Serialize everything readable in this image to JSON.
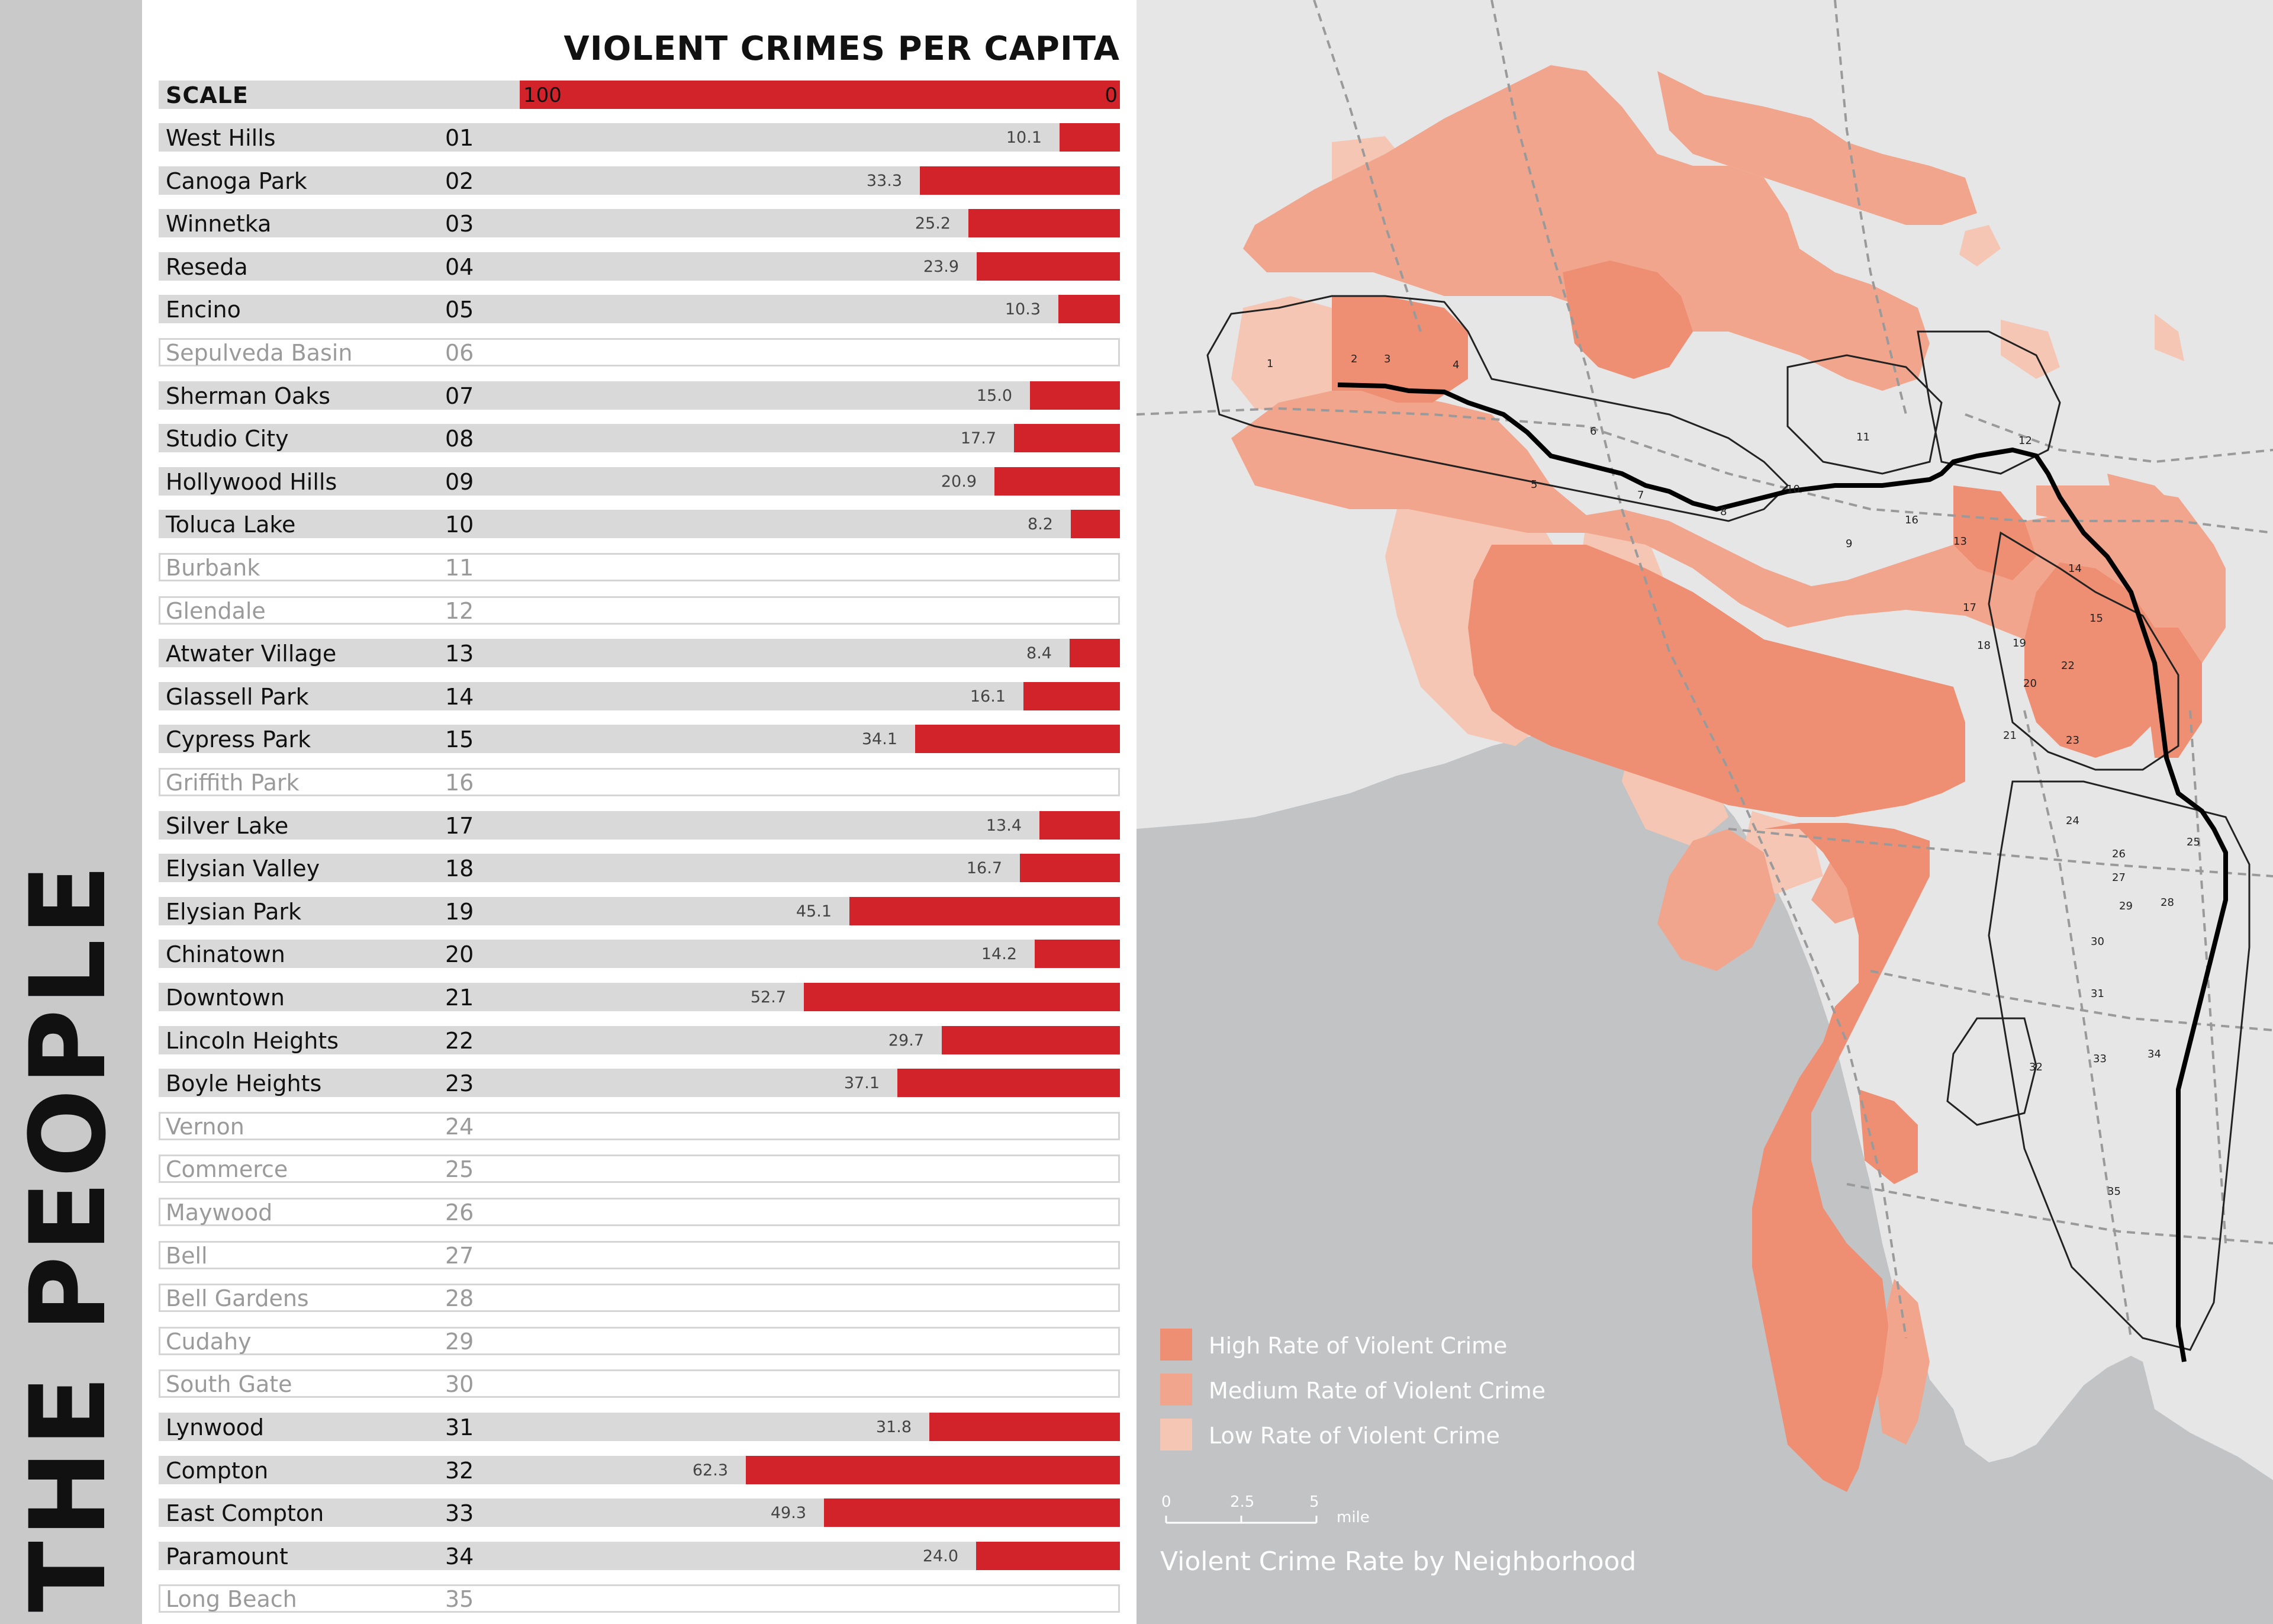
{
  "side_title": "THE PEOPLE",
  "chart_data": {
    "type": "bar",
    "title": "VIOLENT CRIMES PER CAPITA",
    "scale": {
      "label": "SCALE",
      "max_label": "100",
      "min_label": "0",
      "max": 100,
      "min": 0
    },
    "orientation": "horizontal-right-aligned",
    "rows": [
      {
        "name": "West Hills",
        "code": "01",
        "value": 10.1,
        "label": "10.1"
      },
      {
        "name": "Canoga Park",
        "code": "02",
        "value": 33.3,
        "label": "33.3"
      },
      {
        "name": "Winnetka",
        "code": "03",
        "value": 25.2,
        "label": "25.2"
      },
      {
        "name": "Reseda",
        "code": "04",
        "value": 23.9,
        "label": "23.9"
      },
      {
        "name": "Encino",
        "code": "05",
        "value": 10.3,
        "label": "10.3"
      },
      {
        "name": "Sepulveda Basin",
        "code": "06",
        "value": null,
        "label": ""
      },
      {
        "name": "Sherman Oaks",
        "code": "07",
        "value": 15.0,
        "label": "15.0"
      },
      {
        "name": "Studio City",
        "code": "08",
        "value": 17.7,
        "label": "17.7"
      },
      {
        "name": "Hollywood Hills",
        "code": "09",
        "value": 20.9,
        "label": "20.9"
      },
      {
        "name": "Toluca Lake",
        "code": "10",
        "value": 8.2,
        "label": "8.2"
      },
      {
        "name": "Burbank",
        "code": "11",
        "value": null,
        "label": ""
      },
      {
        "name": "Glendale",
        "code": "12",
        "value": null,
        "label": ""
      },
      {
        "name": "Atwater Village",
        "code": "13",
        "value": 8.4,
        "label": "8.4"
      },
      {
        "name": "Glassell Park",
        "code": "14",
        "value": 16.1,
        "label": "16.1"
      },
      {
        "name": "Cypress Park",
        "code": "15",
        "value": 34.1,
        "label": "34.1"
      },
      {
        "name": "Griffith Park",
        "code": "16",
        "value": null,
        "label": ""
      },
      {
        "name": "Silver Lake",
        "code": "17",
        "value": 13.4,
        "label": "13.4"
      },
      {
        "name": "Elysian Valley",
        "code": "18",
        "value": 16.7,
        "label": "16.7"
      },
      {
        "name": "Elysian Park",
        "code": "19",
        "value": 45.1,
        "label": "45.1"
      },
      {
        "name": "Chinatown",
        "code": "20",
        "value": 14.2,
        "label": "14.2"
      },
      {
        "name": "Downtown",
        "code": "21",
        "value": 52.7,
        "label": "52.7"
      },
      {
        "name": "Lincoln Heights",
        "code": "22",
        "value": 29.7,
        "label": "29.7"
      },
      {
        "name": "Boyle Heights",
        "code": "23",
        "value": 37.1,
        "label": "37.1"
      },
      {
        "name": "Vernon",
        "code": "24",
        "value": null,
        "label": ""
      },
      {
        "name": "Commerce",
        "code": "25",
        "value": null,
        "label": ""
      },
      {
        "name": "Maywood",
        "code": "26",
        "value": null,
        "label": ""
      },
      {
        "name": "Bell",
        "code": "27",
        "value": null,
        "label": ""
      },
      {
        "name": "Bell Gardens",
        "code": "28",
        "value": null,
        "label": ""
      },
      {
        "name": "Cudahy",
        "code": "29",
        "value": null,
        "label": ""
      },
      {
        "name": "South Gate",
        "code": "30",
        "value": null,
        "label": ""
      },
      {
        "name": "Lynwood",
        "code": "31",
        "value": 31.8,
        "label": "31.8"
      },
      {
        "name": "Compton",
        "code": "32",
        "value": 62.3,
        "label": "62.3"
      },
      {
        "name": "East Compton",
        "code": "33",
        "value": 49.3,
        "label": "49.3"
      },
      {
        "name": "Paramount",
        "code": "34",
        "value": 24.0,
        "label": "24.0"
      },
      {
        "name": "Long Beach",
        "code": "35",
        "value": null,
        "label": ""
      }
    ],
    "bar_color": "#d2232a"
  },
  "map": {
    "caption": "Violent Crime Rate by Neighborhood",
    "legend": [
      {
        "label": "High Rate of Violent Crime",
        "color": "#ee8f74"
      },
      {
        "label": "Medium Rate of Violent Crime",
        "color": "#f1a58d"
      },
      {
        "label": "Low Rate of Violent Crime",
        "color": "#f6c6b4"
      }
    ],
    "scalebar": {
      "ticks": [
        "0",
        "2.5",
        "5"
      ],
      "unit": "mile"
    },
    "neighborhood_labels": [
      "1",
      "2",
      "3",
      "4",
      "5",
      "6",
      "7",
      "8",
      "9",
      "10",
      "11",
      "12",
      "13",
      "14",
      "15",
      "16",
      "17",
      "18",
      "19",
      "20",
      "21",
      "22",
      "23",
      "24",
      "25",
      "26",
      "27",
      "28",
      "29",
      "30",
      "31",
      "32",
      "33",
      "34",
      "35"
    ],
    "colors": {
      "ocean": "#c2c3c5",
      "land": "#e6e6e7",
      "route": "#000000"
    }
  }
}
